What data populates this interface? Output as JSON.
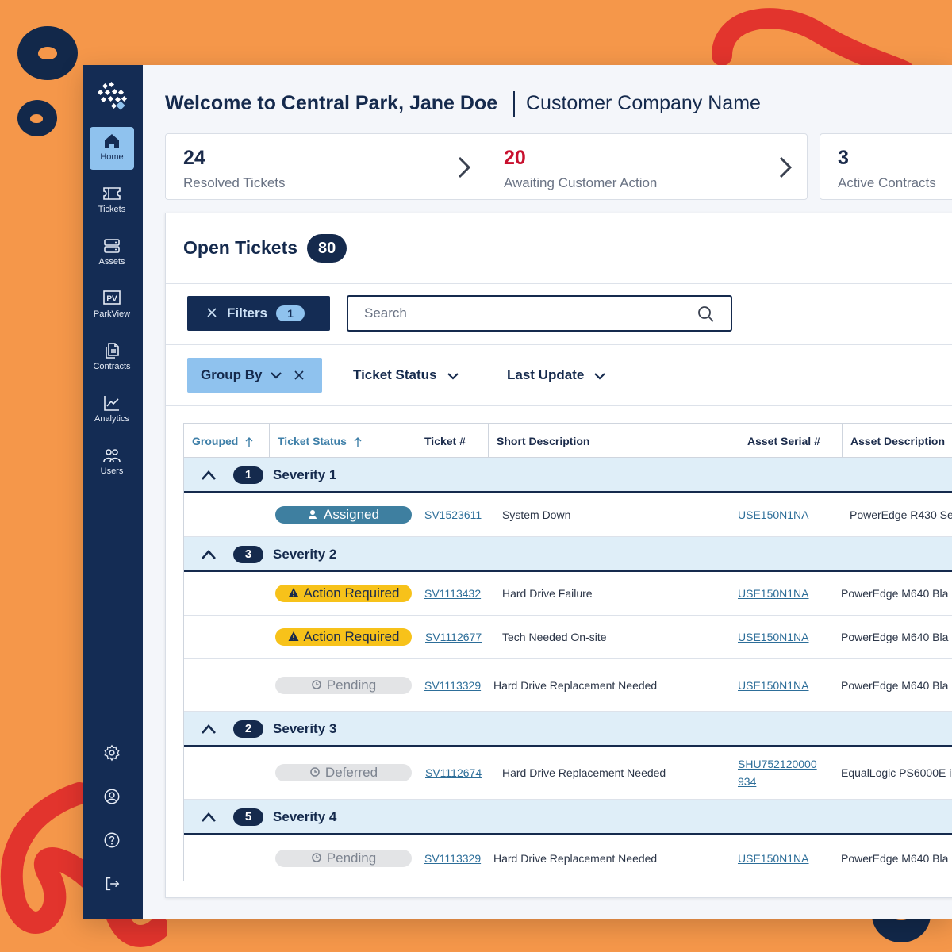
{
  "colors": {
    "sidebar": "#142C54",
    "accent_light": "#8FC2EE",
    "awaiting": "#C8102E",
    "background": "#F5974A"
  },
  "header": {
    "welcome": "Welcome to Central Park, Jane Doe",
    "company": "Customer Company Name"
  },
  "sidebar": {
    "items": [
      {
        "label": "Home",
        "icon": "home-icon"
      },
      {
        "label": "Tickets",
        "icon": "ticket-icon"
      },
      {
        "label": "Assets",
        "icon": "server-icon"
      },
      {
        "label": "ParkView",
        "icon": "parkview-icon",
        "glyph": "PV"
      },
      {
        "label": "Contracts",
        "icon": "document-icon"
      },
      {
        "label": "Analytics",
        "icon": "chart-line-icon"
      },
      {
        "label": "Users",
        "icon": "users-icon"
      }
    ],
    "bottom": [
      "settings-icon",
      "account-icon",
      "help-icon",
      "logout-icon"
    ]
  },
  "stats": [
    {
      "value": "24",
      "label": "Resolved Tickets"
    },
    {
      "value": "20",
      "label": "Awaiting Customer Action"
    },
    {
      "value": "3",
      "label": "Active Contracts"
    }
  ],
  "open_tickets": {
    "title": "Open Tickets",
    "count": "80",
    "filters_label": "Filters",
    "filters_count": "1",
    "search_placeholder": "Search",
    "group_by_label": "Group By",
    "sort_options": [
      "Ticket Status",
      "Last Update"
    ],
    "columns": [
      "Grouped",
      "Ticket Status",
      "Ticket #",
      "Short Description",
      "Asset Serial #",
      "Asset Description"
    ],
    "groups": [
      {
        "count": "1",
        "name": "Severity 1",
        "rows": [
          {
            "status": "Assigned",
            "ticket": "SV1523611",
            "desc": "System Down",
            "serial": "USE150N1NA",
            "asset": "PowerEdge R430 Se"
          }
        ]
      },
      {
        "count": "3",
        "name": "Severity 2",
        "rows": [
          {
            "status": "Action Required",
            "ticket": "SV1113432",
            "desc": "Hard Drive Failure",
            "serial": "USE150N1NA",
            "asset": "PowerEdge M640 Bla"
          },
          {
            "status": "Action Required",
            "ticket": "SV1112677",
            "desc": "Tech Needed On-site",
            "serial": "USE150N1NA",
            "asset": "PowerEdge M640 Bla"
          },
          {
            "status": "Pending",
            "ticket": "SV1113329",
            "desc": "Hard Drive Replacement Needed",
            "serial": "USE150N1NA",
            "asset": "PowerEdge M640 Bla"
          }
        ]
      },
      {
        "count": "2",
        "name": "Severity 3",
        "rows": [
          {
            "status": "Deferred",
            "ticket": "SV1112674",
            "desc": "Hard Drive Replacement Needed",
            "serial_line1": "SHU752120000",
            "serial_line2": "934",
            "asset": "EqualLogic PS6000E i"
          }
        ]
      },
      {
        "count": "5",
        "name": "Severity 4",
        "rows": [
          {
            "status": "Pending",
            "ticket": "SV1113329",
            "desc": "Hard Drive Replacement Needed",
            "serial": "USE150N1NA",
            "asset": "PowerEdge M640 Bla"
          }
        ]
      }
    ]
  }
}
